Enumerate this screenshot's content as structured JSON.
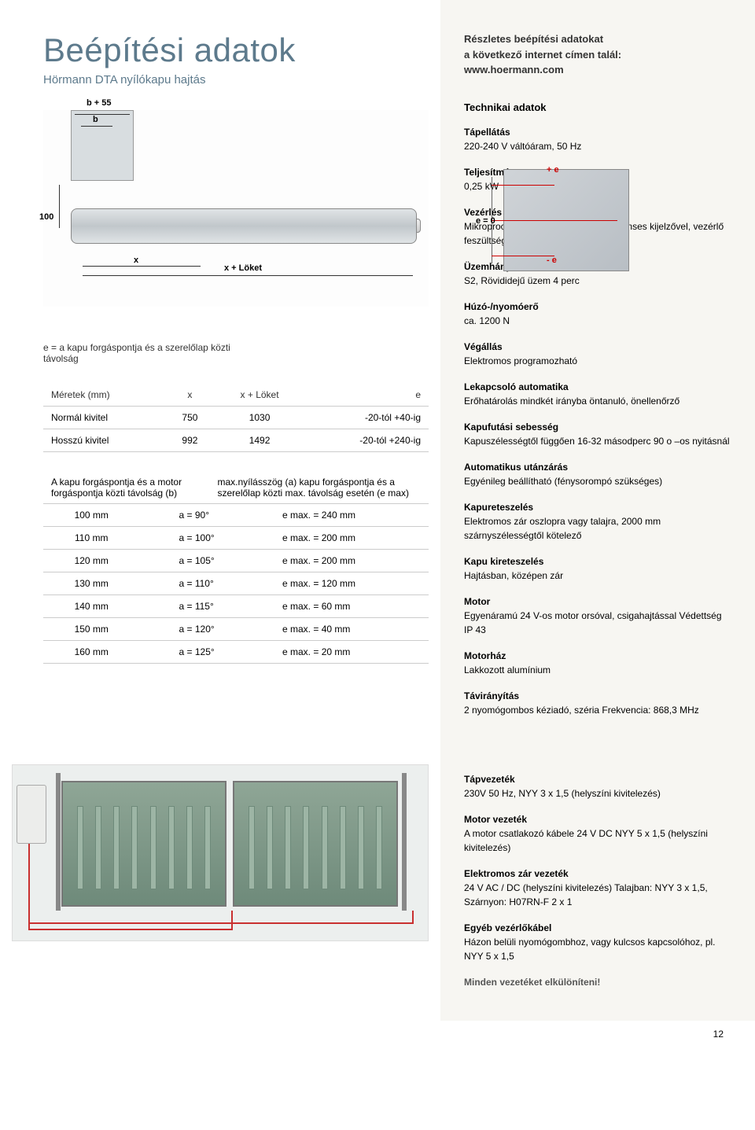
{
  "header": {
    "title": "Beépítési adatok",
    "subtitle": "Hörmann DTA nyílókapu hajtás",
    "intro_line1": "Részletes beépítési adatokat",
    "intro_line2": "a következő internet címen talál:",
    "intro_line3": "www.hoermann.com"
  },
  "diagram1": {
    "b55": "b + 55",
    "b": "b",
    "d100": "100",
    "x": "x",
    "x_loket": "x + Löket"
  },
  "diagram2": {
    "plus_e": "+ e",
    "minus_e": "- e",
    "e0": "e = 0"
  },
  "e_definition": "e = a kapu forgáspontja és a szerelőlap közti távolság",
  "table1": {
    "h_dim": "Méretek (mm)",
    "h_x": "x",
    "h_xl": "x + Löket",
    "h_e": "e",
    "rows": [
      {
        "name": "Normál kivitel",
        "x": "750",
        "xl": "1030",
        "e": "-20-tól +40-ig"
      },
      {
        "name": "Hosszú kivitel",
        "x": "992",
        "xl": "1492",
        "e": "-20-tól +240-ig"
      }
    ]
  },
  "angle_header": {
    "left": "A kapu forgáspontja és a motor forgáspontja közti távolság (b)",
    "right": "max.nyílásszög (a) kapu forgáspontja és a szerelőlap közti max. távolság esetén (e max)"
  },
  "angle_rows": [
    {
      "b": "100 mm",
      "a": "a =  90°",
      "e": "e max. = 240 mm"
    },
    {
      "b": "110 mm",
      "a": "a = 100°",
      "e": "e max. = 200 mm"
    },
    {
      "b": "120 mm",
      "a": "a = 105°",
      "e": "e max. = 200 mm"
    },
    {
      "b": "130 mm",
      "a": "a = 110°",
      "e": "e max. = 120 mm"
    },
    {
      "b": "140 mm",
      "a": "a = 115°",
      "e": "e max. =  60 mm"
    },
    {
      "b": "150 mm",
      "a": "a = 120°",
      "e": "e max. =  40 mm"
    },
    {
      "b": "160 mm",
      "a": "a = 125°",
      "e": "e max. =  20 mm"
    }
  ],
  "specs": {
    "title": "Technikai adatok",
    "items": [
      {
        "label": "Tápellátás",
        "val": "220-240 V váltóáram, 50 Hz"
      },
      {
        "label": "Teljesítmény",
        "val": "0,25 kW"
      },
      {
        "label": "Vezérlés",
        "val": "Mikroprocesszoros vezérlés, 7 szegmenses kijelzővel, vezérlő feszültség 24 V"
      },
      {
        "label": "Üzemhányad",
        "val": "S2, Rövididejű üzem 4 perc"
      },
      {
        "label": "Húzó-/nyomóerő",
        "val": "ca. 1200 N"
      },
      {
        "label": "Végállás",
        "val": "Elektromos programozható"
      },
      {
        "label": "Lekapcsoló automatika",
        "val": "Erőhatárolás mindkét irányba öntanuló, önellenőrző"
      },
      {
        "label": "Kapufutási sebesség",
        "val": "Kapuszélességtől függően 16-32 másodperc 90 o –os nyitásnál"
      },
      {
        "label": "Automatikus utánzárás",
        "val": "Egyénileg beállítható (fénysorompó szükséges)"
      },
      {
        "label": "Kapureteszelés",
        "val": "Elektromos zár oszlopra vagy talajra, 2000 mm szárnyszélességtől kötelező"
      },
      {
        "label": "Kapu kireteszelés",
        "val": "Hajtásban, középen zár"
      },
      {
        "label": "Motor",
        "val": "Egyenáramú 24 V-os motor orsóval, csigahajtással Védettség IP 43"
      },
      {
        "label": "Motorház",
        "val": "Lakkozott alumínium"
      },
      {
        "label": "Távirányítás",
        "val": "2 nyomógombos kéziadó, széria Frekvencia: 868,3 MHz"
      }
    ]
  },
  "cables": [
    {
      "label": "Tápvezeték",
      "val": "230V 50 Hz, NYY 3 x 1,5 (helyszíni kivitelezés)"
    },
    {
      "label": "Motor vezeték",
      "val": "A motor csatlakozó kábele 24 V DC NYY 5 x 1,5 (helyszíni kivitelezés)"
    },
    {
      "label": "Elektromos zár vezeték",
      "val": "24 V AC / DC (helyszíni kivitelezés) Talajban: NYY 3 x 1,5, Szárnyon: H07RN-F 2 x 1"
    },
    {
      "label": "Egyéb vezérlőkábel",
      "val": "Házon belüli nyomógombhoz, vagy kulcsos kapcsolóhoz, pl. NYY 5 x 1,5"
    }
  ],
  "cable_footer": "Minden vezetéket elkülöníteni!",
  "page_number": "12"
}
